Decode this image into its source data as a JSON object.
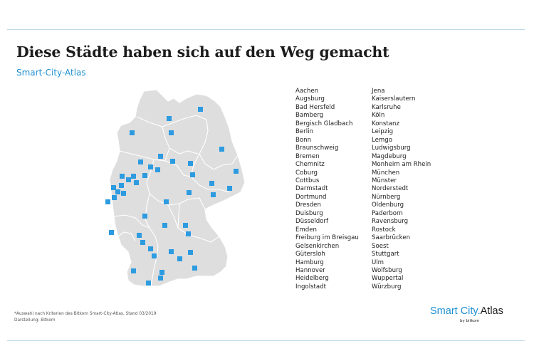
{
  "title": "Diese Städte haben sich auf den Weg gemacht",
  "subtitle": "Smart-City-Atlas",
  "colors": {
    "accent": "#1e90d2",
    "marker": "#2d9be0",
    "land": "#dedede",
    "border": "#ffffff",
    "text": "#1c1c1c"
  },
  "cities_col1": [
    "Aachen",
    "Augsburg",
    "Bad Hersfeld",
    "Bamberg",
    "Bergisch Gladbach",
    "Berlin",
    "Bonn",
    "Braunschweig",
    "Bremen",
    "Chemnitz",
    "Coburg",
    "Cottbus",
    "Darmstadt",
    "Dortmund",
    "Dresden",
    "Duisburg",
    "Düsseldorf",
    "Emden",
    "Freiburg im Breisgau",
    "Gelsenkirchen",
    "Gütersloh",
    "Hamburg",
    "Hannover",
    "Heidelberg",
    "Ingolstadt"
  ],
  "cities_col2": [
    "Jena",
    "Kaiserslautern",
    "Karlsruhe",
    "Köln",
    "Konstanz",
    "Leipzig",
    "Lemgo",
    "Ludwigsburg",
    "Magdeburg",
    "Monheim am Rhein",
    "München",
    "Münster",
    "Norderstedt",
    "Nürnberg",
    "Oldenburg",
    "Paderborn",
    "Ravensburg",
    "Rostock",
    "Saarbrücken",
    "Soest",
    "Stuttgart",
    "Ulm",
    "Wolfsburg",
    "Wuppertal",
    "Würzburg"
  ],
  "footnote": {
    "line1": "*Auswahl nach Kriterien des Bitkom Smart-City-Atlas, Stand 03/2019",
    "line2": "Darstellung: Bitkom"
  },
  "logo": {
    "word1": "Smart City.",
    "word2": "Atlas",
    "byline": "by bitkom"
  }
}
